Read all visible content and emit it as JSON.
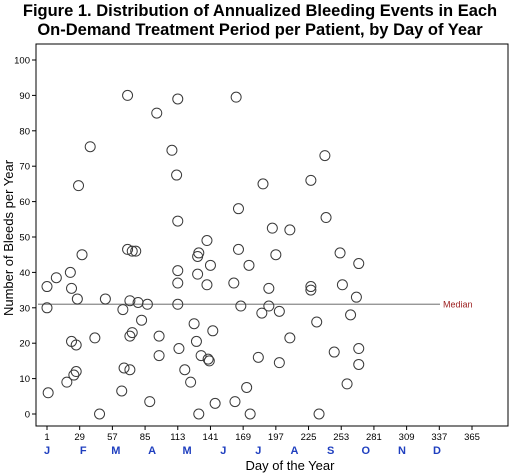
{
  "title_line1": "Figure 1. Distribution of Annualized Bleeding Events in Each",
  "title_line2": "On-Demand Treatment Period per Patient, by Day of Year",
  "colors": {
    "marker": "#3a3a3a",
    "median_line": "#8a8a8a",
    "median_label": "#9b1c1c",
    "month_label": "#1f3fbf"
  },
  "chart_data": {
    "type": "scatter",
    "xlabel": "Day of the Year",
    "ylabel": "Number of Bleeds per Year",
    "xlim": [
      1,
      365
    ],
    "ylim": [
      0,
      100
    ],
    "x_ticks": [
      1,
      29,
      57,
      85,
      113,
      141,
      169,
      197,
      225,
      253,
      281,
      309,
      337,
      365
    ],
    "y_ticks": [
      0,
      10,
      20,
      30,
      40,
      50,
      60,
      70,
      80,
      90,
      100
    ],
    "month_labels": [
      {
        "label": "J",
        "day": 1
      },
      {
        "label": "F",
        "day": 32
      },
      {
        "label": "M",
        "day": 60
      },
      {
        "label": "A",
        "day": 91
      },
      {
        "label": "M",
        "day": 121
      },
      {
        "label": "J",
        "day": 152
      },
      {
        "label": "J",
        "day": 182
      },
      {
        "label": "A",
        "day": 213
      },
      {
        "label": "S",
        "day": 244
      },
      {
        "label": "O",
        "day": 274
      },
      {
        "label": "N",
        "day": 305
      },
      {
        "label": "D",
        "day": 335
      }
    ],
    "median": {
      "value": 31,
      "label": "Median"
    },
    "points": [
      {
        "x": 1,
        "y": 36
      },
      {
        "x": 1,
        "y": 30
      },
      {
        "x": 2,
        "y": 6
      },
      {
        "x": 9,
        "y": 38.5
      },
      {
        "x": 18,
        "y": 9
      },
      {
        "x": 21,
        "y": 40
      },
      {
        "x": 22,
        "y": 35.5
      },
      {
        "x": 22,
        "y": 20.5
      },
      {
        "x": 24,
        "y": 11
      },
      {
        "x": 26,
        "y": 12
      },
      {
        "x": 26,
        "y": 19.5
      },
      {
        "x": 27,
        "y": 32.5
      },
      {
        "x": 28,
        "y": 64.5
      },
      {
        "x": 31,
        "y": 45
      },
      {
        "x": 38,
        "y": 75.5
      },
      {
        "x": 42,
        "y": 21.5
      },
      {
        "x": 46,
        "y": 0
      },
      {
        "x": 51,
        "y": 32.5
      },
      {
        "x": 65,
        "y": 6.5
      },
      {
        "x": 66,
        "y": 29.5
      },
      {
        "x": 67,
        "y": 13
      },
      {
        "x": 70,
        "y": 90
      },
      {
        "x": 70,
        "y": 46.5
      },
      {
        "x": 72,
        "y": 22
      },
      {
        "x": 72,
        "y": 12.5
      },
      {
        "x": 72,
        "y": 32
      },
      {
        "x": 74,
        "y": 46
      },
      {
        "x": 74,
        "y": 23
      },
      {
        "x": 77,
        "y": 46
      },
      {
        "x": 79,
        "y": 31.5
      },
      {
        "x": 82,
        "y": 26.5
      },
      {
        "x": 87,
        "y": 31
      },
      {
        "x": 89,
        "y": 3.5
      },
      {
        "x": 95,
        "y": 85
      },
      {
        "x": 97,
        "y": 22
      },
      {
        "x": 97,
        "y": 16.5
      },
      {
        "x": 108,
        "y": 74.5
      },
      {
        "x": 112,
        "y": 67.5
      },
      {
        "x": 113,
        "y": 89
      },
      {
        "x": 113,
        "y": 54.5
      },
      {
        "x": 113,
        "y": 40.5
      },
      {
        "x": 113,
        "y": 37
      },
      {
        "x": 113,
        "y": 31
      },
      {
        "x": 114,
        "y": 18.5
      },
      {
        "x": 119,
        "y": 12.5
      },
      {
        "x": 124,
        "y": 9
      },
      {
        "x": 127,
        "y": 25.5
      },
      {
        "x": 129,
        "y": 20.5
      },
      {
        "x": 130,
        "y": 44.5
      },
      {
        "x": 131,
        "y": 45.5
      },
      {
        "x": 130,
        "y": 39.5
      },
      {
        "x": 131,
        "y": 0
      },
      {
        "x": 133,
        "y": 16.5
      },
      {
        "x": 138,
        "y": 49
      },
      {
        "x": 138,
        "y": 36.5
      },
      {
        "x": 139,
        "y": 15.5
      },
      {
        "x": 140,
        "y": 15
      },
      {
        "x": 141,
        "y": 42
      },
      {
        "x": 143,
        "y": 23.5
      },
      {
        "x": 145,
        "y": 3
      },
      {
        "x": 161,
        "y": 37
      },
      {
        "x": 162,
        "y": 3.5
      },
      {
        "x": 163,
        "y": 89.5
      },
      {
        "x": 165,
        "y": 58
      },
      {
        "x": 165,
        "y": 46.5
      },
      {
        "x": 167,
        "y": 30.5
      },
      {
        "x": 172,
        "y": 7.5
      },
      {
        "x": 174,
        "y": 42
      },
      {
        "x": 175,
        "y": 0
      },
      {
        "x": 182,
        "y": 16
      },
      {
        "x": 185,
        "y": 28.5
      },
      {
        "x": 186,
        "y": 65
      },
      {
        "x": 191,
        "y": 35.5
      },
      {
        "x": 191,
        "y": 30.5
      },
      {
        "x": 194,
        "y": 52.5
      },
      {
        "x": 197,
        "y": 45
      },
      {
        "x": 200,
        "y": 29
      },
      {
        "x": 200,
        "y": 14.5
      },
      {
        "x": 209,
        "y": 52
      },
      {
        "x": 209,
        "y": 21.5
      },
      {
        "x": 227,
        "y": 66
      },
      {
        "x": 227,
        "y": 36
      },
      {
        "x": 227,
        "y": 35
      },
      {
        "x": 232,
        "y": 26
      },
      {
        "x": 234,
        "y": 0
      },
      {
        "x": 239,
        "y": 73
      },
      {
        "x": 240,
        "y": 55.5
      },
      {
        "x": 247,
        "y": 17.5
      },
      {
        "x": 252,
        "y": 45.5
      },
      {
        "x": 254,
        "y": 36.5
      },
      {
        "x": 258,
        "y": 8.5
      },
      {
        "x": 261,
        "y": 28
      },
      {
        "x": 266,
        "y": 33
      },
      {
        "x": 268,
        "y": 18.5
      },
      {
        "x": 268,
        "y": 14
      },
      {
        "x": 268,
        "y": 42.5
      }
    ]
  }
}
